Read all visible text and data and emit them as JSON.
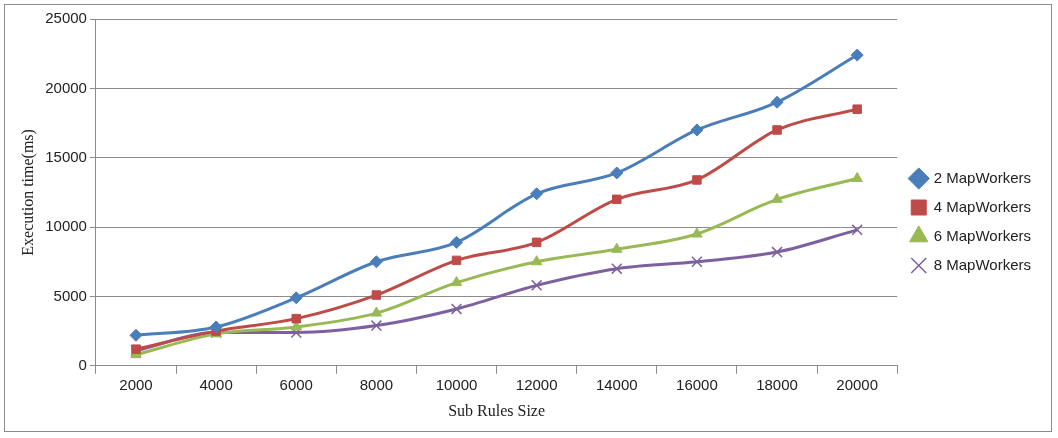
{
  "chart_data": {
    "type": "line",
    "xlabel": "Sub Rules Size",
    "ylabel": "Execution time(ms)",
    "categories": [
      "2000",
      "4000",
      "6000",
      "8000",
      "10000",
      "12000",
      "14000",
      "16000",
      "18000",
      "20000"
    ],
    "series": [
      {
        "name": "2 MapWorkers",
        "color": "#4a7ebb",
        "marker": "diamond",
        "values": [
          2200,
          2800,
          4900,
          7500,
          8900,
          12400,
          13900,
          17000,
          19000,
          22400
        ]
      },
      {
        "name": "4 MapWorkers",
        "color": "#be4b48",
        "marker": "square",
        "values": [
          1200,
          2500,
          3400,
          5100,
          7600,
          8900,
          12000,
          13400,
          17000,
          18500
        ]
      },
      {
        "name": "6 MapWorkers",
        "color": "#98b954",
        "marker": "triangle",
        "values": [
          800,
          2300,
          2800,
          3800,
          6000,
          7500,
          8400,
          9500,
          12000,
          13500
        ]
      },
      {
        "name": "8 MapWorkers",
        "color": "#7d60a0",
        "marker": "cross",
        "values": [
          1100,
          2400,
          2400,
          2900,
          4100,
          5800,
          7000,
          7500,
          8200,
          9800
        ]
      }
    ],
    "ylim": [
      0,
      25000
    ],
    "yticks": [
      0,
      5000,
      10000,
      15000,
      20000,
      25000
    ],
    "grid": "y",
    "legend": "right"
  }
}
